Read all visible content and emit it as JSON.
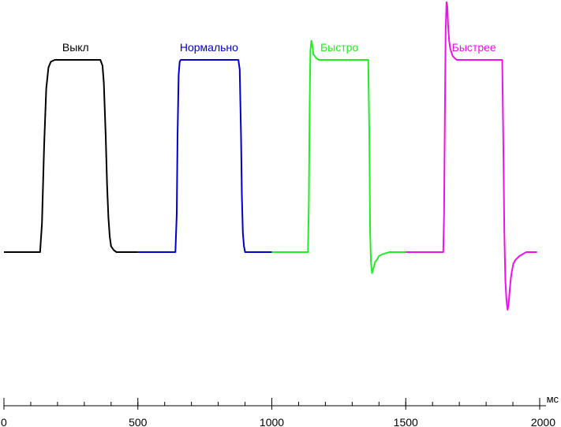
{
  "chart_data": {
    "type": "line",
    "title": "",
    "xlabel": "",
    "ylabel": "",
    "x_unit": "мс",
    "xlim": [
      0,
      2000
    ],
    "ylim": [
      -0.3,
      1.3
    ],
    "y_axis_shown": false,
    "grid": false,
    "x_ticks": [
      {
        "value": 0,
        "label": "0"
      },
      {
        "value": 500,
        "label": "500"
      },
      {
        "value": 1000,
        "label": "1000"
      },
      {
        "value": 1500,
        "label": "1500"
      },
      {
        "value": 2000,
        "label": "2000"
      }
    ],
    "x_minor_step": 100,
    "series": [
      {
        "name": "Выкл",
        "color": "#000000",
        "x": [
          0,
          135,
          142,
          150,
          158,
          166,
          175,
          190,
          250,
          360,
          368,
          373,
          380,
          385,
          390,
          395,
          400,
          410,
          420,
          440,
          470,
          500
        ],
        "y": [
          0,
          0,
          0.15,
          0.55,
          0.85,
          0.96,
          0.99,
          1.0,
          1.0,
          1.0,
          0.97,
          0.88,
          0.6,
          0.35,
          0.18,
          0.08,
          0.03,
          0.01,
          0.0,
          0.0,
          0.0,
          0.0
        ]
      },
      {
        "name": "Нормально",
        "color": "#0000cc",
        "x": [
          500,
          640,
          645,
          648,
          652,
          656,
          660,
          700,
          800,
          875,
          880,
          885,
          888,
          892,
          896,
          900,
          920,
          1000
        ],
        "y": [
          0,
          0,
          0.2,
          0.6,
          0.92,
          0.99,
          1.0,
          1.0,
          1.0,
          1.0,
          0.95,
          0.6,
          0.3,
          0.1,
          0.03,
          0.0,
          0.0,
          0.0
        ]
      },
      {
        "name": "Быстро",
        "color": "#22ee22",
        "x": [
          1000,
          1135,
          1138,
          1141,
          1144,
          1148,
          1152,
          1155,
          1160,
          1165,
          1175,
          1190,
          1250,
          1360,
          1364,
          1367,
          1370,
          1374,
          1378,
          1382,
          1386,
          1392,
          1400,
          1415,
          1440,
          1500
        ],
        "y": [
          0,
          0,
          0.25,
          0.75,
          1.05,
          1.1,
          1.07,
          1.03,
          1.02,
          1.01,
          1.0,
          1.0,
          1.0,
          1.0,
          0.6,
          0.1,
          -0.05,
          -0.11,
          -0.09,
          -0.07,
          -0.05,
          -0.04,
          -0.02,
          -0.01,
          0.0,
          0.0
        ]
      },
      {
        "name": "Быстрее",
        "color": "#ee11ee",
        "x": [
          1500,
          1640,
          1643,
          1646,
          1649,
          1652,
          1655,
          1658,
          1662,
          1666,
          1670,
          1675,
          1682,
          1690,
          1720,
          1860,
          1864,
          1868,
          1872,
          1876,
          1880,
          1884,
          1888,
          1892,
          1896,
          1902,
          1910,
          1925,
          1950,
          1990
        ],
        "y": [
          0,
          0,
          0.2,
          0.7,
          1.15,
          1.3,
          1.28,
          1.18,
          1.1,
          1.06,
          1.04,
          1.02,
          1.01,
          1.0,
          1.0,
          1.0,
          0.6,
          0.1,
          -0.15,
          -0.25,
          -0.3,
          -0.27,
          -0.2,
          -0.14,
          -0.1,
          -0.06,
          -0.04,
          -0.02,
          0.0,
          0.0
        ]
      }
    ]
  }
}
